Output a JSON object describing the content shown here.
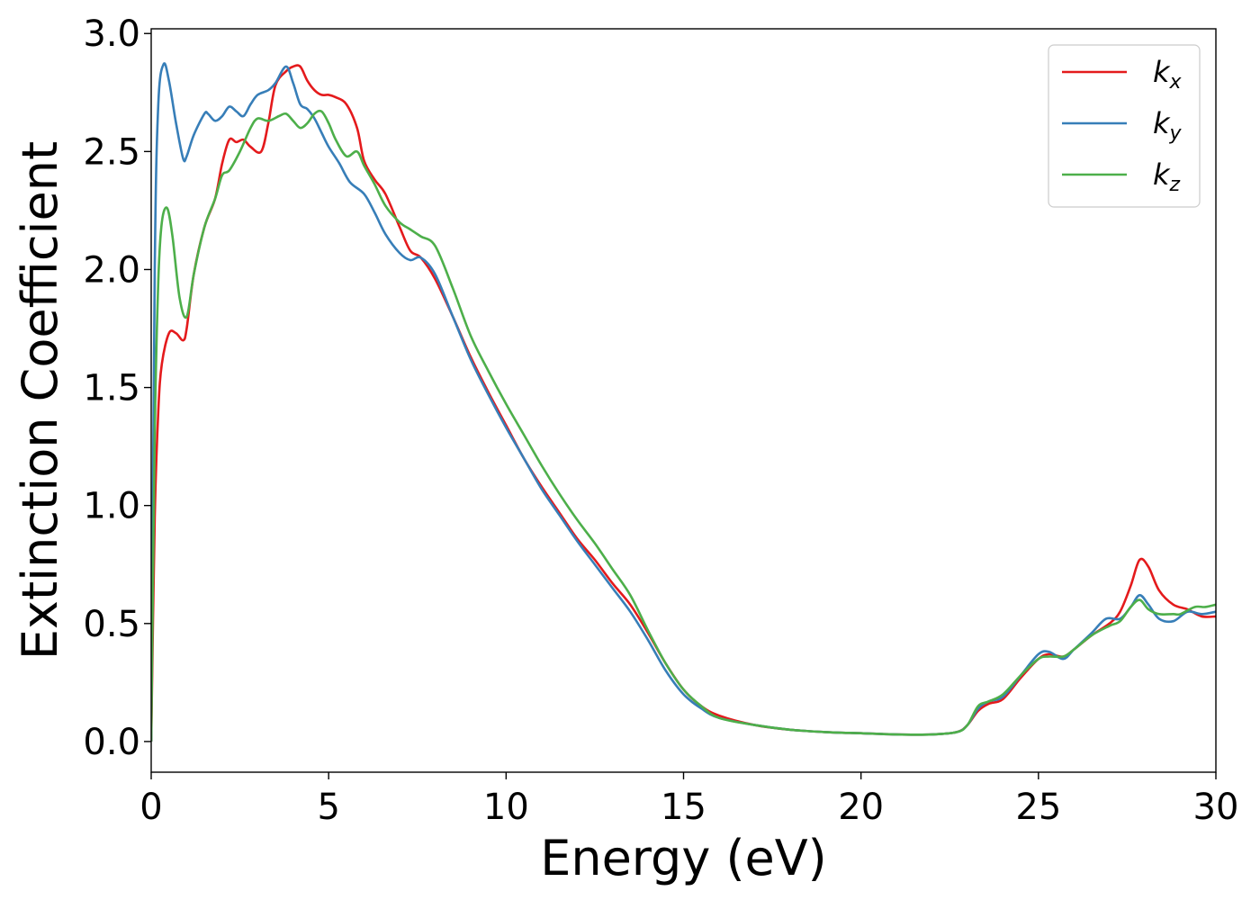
{
  "chart_data": {
    "type": "line",
    "title": "",
    "xlabel": "Energy (eV)",
    "ylabel": "Extinction Coefficient",
    "xlim": [
      0,
      30
    ],
    "ylim": [
      -0.13,
      3.02
    ],
    "xticks": [
      0,
      5,
      10,
      15,
      20,
      25,
      30
    ],
    "xtick_labels": [
      "0",
      "5",
      "10",
      "15",
      "20",
      "25",
      "30"
    ],
    "yticks": [
      0.0,
      0.5,
      1.0,
      1.5,
      2.0,
      2.5,
      3.0
    ],
    "ytick_labels": [
      "0.0",
      "0.5",
      "1.0",
      "1.5",
      "2.0",
      "2.5",
      "3.0"
    ],
    "grid": false,
    "legend_position": "top-right",
    "series": [
      {
        "name": "k",
        "subscript": "x",
        "color": "#e41a1c",
        "x": [
          0,
          0.1,
          0.2,
          0.3,
          0.5,
          0.7,
          0.9,
          1.0,
          1.2,
          1.5,
          1.8,
          2.0,
          2.2,
          2.4,
          2.6,
          2.8,
          3.1,
          3.3,
          3.5,
          3.8,
          4.0,
          4.2,
          4.4,
          4.6,
          4.8,
          5.0,
          5.2,
          5.5,
          5.8,
          6.0,
          6.3,
          6.6,
          7.0,
          7.3,
          7.6,
          8.0,
          8.5,
          9.0,
          9.5,
          10.0,
          10.5,
          11.0,
          11.5,
          12.0,
          12.5,
          13.0,
          13.5,
          14.0,
          14.5,
          15.0,
          15.5,
          16.0,
          17.0,
          18.0,
          19.0,
          20.0,
          21.0,
          22.0,
          22.7,
          23.0,
          23.3,
          23.6,
          24.0,
          24.5,
          25.0,
          25.3,
          25.7,
          26.0,
          26.5,
          27.0,
          27.3,
          27.6,
          27.85,
          28.1,
          28.4,
          28.8,
          29.2,
          29.6,
          30.0
        ],
        "y": [
          0.0,
          0.95,
          1.4,
          1.6,
          1.73,
          1.73,
          1.7,
          1.75,
          1.98,
          2.18,
          2.3,
          2.45,
          2.55,
          2.54,
          2.55,
          2.52,
          2.5,
          2.62,
          2.78,
          2.84,
          2.86,
          2.86,
          2.8,
          2.76,
          2.74,
          2.74,
          2.73,
          2.7,
          2.6,
          2.46,
          2.38,
          2.32,
          2.18,
          2.08,
          2.05,
          1.96,
          1.8,
          1.63,
          1.48,
          1.34,
          1.2,
          1.08,
          0.97,
          0.86,
          0.77,
          0.67,
          0.58,
          0.46,
          0.33,
          0.22,
          0.15,
          0.11,
          0.07,
          0.05,
          0.04,
          0.035,
          0.03,
          0.03,
          0.04,
          0.07,
          0.13,
          0.16,
          0.18,
          0.27,
          0.35,
          0.37,
          0.36,
          0.39,
          0.45,
          0.5,
          0.55,
          0.66,
          0.77,
          0.74,
          0.64,
          0.58,
          0.56,
          0.53,
          0.53
        ]
      },
      {
        "name": "k",
        "subscript": "y",
        "color": "#377eb8",
        "x": [
          0,
          0.1,
          0.2,
          0.35,
          0.5,
          0.7,
          0.9,
          1.0,
          1.2,
          1.5,
          1.6,
          1.8,
          2.0,
          2.2,
          2.4,
          2.6,
          2.8,
          3.0,
          3.3,
          3.5,
          3.8,
          4.0,
          4.2,
          4.4,
          4.6,
          4.8,
          5.0,
          5.3,
          5.6,
          6.0,
          6.3,
          6.6,
          7.0,
          7.3,
          7.6,
          8.0,
          8.5,
          9.0,
          9.5,
          10.0,
          10.5,
          11.0,
          11.5,
          12.0,
          12.5,
          13.0,
          13.5,
          14.0,
          14.5,
          15.0,
          15.5,
          16.0,
          17.0,
          18.0,
          19.0,
          20.0,
          21.0,
          22.0,
          22.7,
          23.0,
          23.3,
          23.6,
          24.0,
          24.5,
          25.0,
          25.3,
          25.7,
          26.0,
          26.5,
          26.9,
          27.3,
          27.6,
          27.85,
          28.1,
          28.4,
          28.8,
          29.2,
          29.6,
          30.0
        ],
        "y": [
          0.0,
          2.0,
          2.7,
          2.87,
          2.8,
          2.62,
          2.47,
          2.48,
          2.57,
          2.66,
          2.66,
          2.63,
          2.65,
          2.69,
          2.67,
          2.65,
          2.7,
          2.74,
          2.76,
          2.79,
          2.86,
          2.79,
          2.7,
          2.68,
          2.64,
          2.58,
          2.52,
          2.45,
          2.37,
          2.32,
          2.24,
          2.15,
          2.07,
          2.04,
          2.05,
          1.98,
          1.8,
          1.62,
          1.47,
          1.33,
          1.2,
          1.07,
          0.96,
          0.85,
          0.75,
          0.65,
          0.55,
          0.43,
          0.3,
          0.2,
          0.14,
          0.1,
          0.07,
          0.05,
          0.04,
          0.035,
          0.03,
          0.03,
          0.04,
          0.07,
          0.14,
          0.17,
          0.19,
          0.28,
          0.37,
          0.38,
          0.35,
          0.39,
          0.46,
          0.52,
          0.52,
          0.57,
          0.62,
          0.58,
          0.52,
          0.51,
          0.55,
          0.54,
          0.55
        ]
      },
      {
        "name": "k",
        "subscript": "z",
        "color": "#4daf4a",
        "x": [
          0,
          0.1,
          0.2,
          0.3,
          0.45,
          0.6,
          0.8,
          1.0,
          1.2,
          1.5,
          1.8,
          2.0,
          2.2,
          2.5,
          2.8,
          3.0,
          3.3,
          3.6,
          3.8,
          4.0,
          4.2,
          4.4,
          4.6,
          4.8,
          5.0,
          5.2,
          5.5,
          5.8,
          6.0,
          6.3,
          6.6,
          7.0,
          7.3,
          7.6,
          8.0,
          8.5,
          9.0,
          9.5,
          10.0,
          10.5,
          11.0,
          11.5,
          12.0,
          12.5,
          13.0,
          13.5,
          14.0,
          14.5,
          15.0,
          15.5,
          16.0,
          17.0,
          18.0,
          19.0,
          20.0,
          21.0,
          22.0,
          22.7,
          23.0,
          23.3,
          23.6,
          24.0,
          24.5,
          25.0,
          25.3,
          25.7,
          26.0,
          26.5,
          27.0,
          27.3,
          27.6,
          27.85,
          28.1,
          28.4,
          28.8,
          29.0,
          29.4,
          29.7,
          30.0
        ],
        "y": [
          0.0,
          1.3,
          1.95,
          2.2,
          2.26,
          2.14,
          1.88,
          1.8,
          1.98,
          2.18,
          2.3,
          2.4,
          2.42,
          2.5,
          2.6,
          2.64,
          2.63,
          2.65,
          2.66,
          2.63,
          2.6,
          2.62,
          2.66,
          2.67,
          2.62,
          2.55,
          2.48,
          2.5,
          2.44,
          2.36,
          2.27,
          2.2,
          2.17,
          2.14,
          2.1,
          1.92,
          1.72,
          1.57,
          1.43,
          1.3,
          1.17,
          1.05,
          0.94,
          0.84,
          0.73,
          0.62,
          0.47,
          0.33,
          0.22,
          0.15,
          0.1,
          0.07,
          0.05,
          0.04,
          0.035,
          0.03,
          0.03,
          0.04,
          0.07,
          0.15,
          0.17,
          0.2,
          0.28,
          0.35,
          0.36,
          0.36,
          0.39,
          0.45,
          0.49,
          0.51,
          0.57,
          0.6,
          0.56,
          0.54,
          0.54,
          0.54,
          0.57,
          0.57,
          0.58
        ]
      }
    ]
  }
}
